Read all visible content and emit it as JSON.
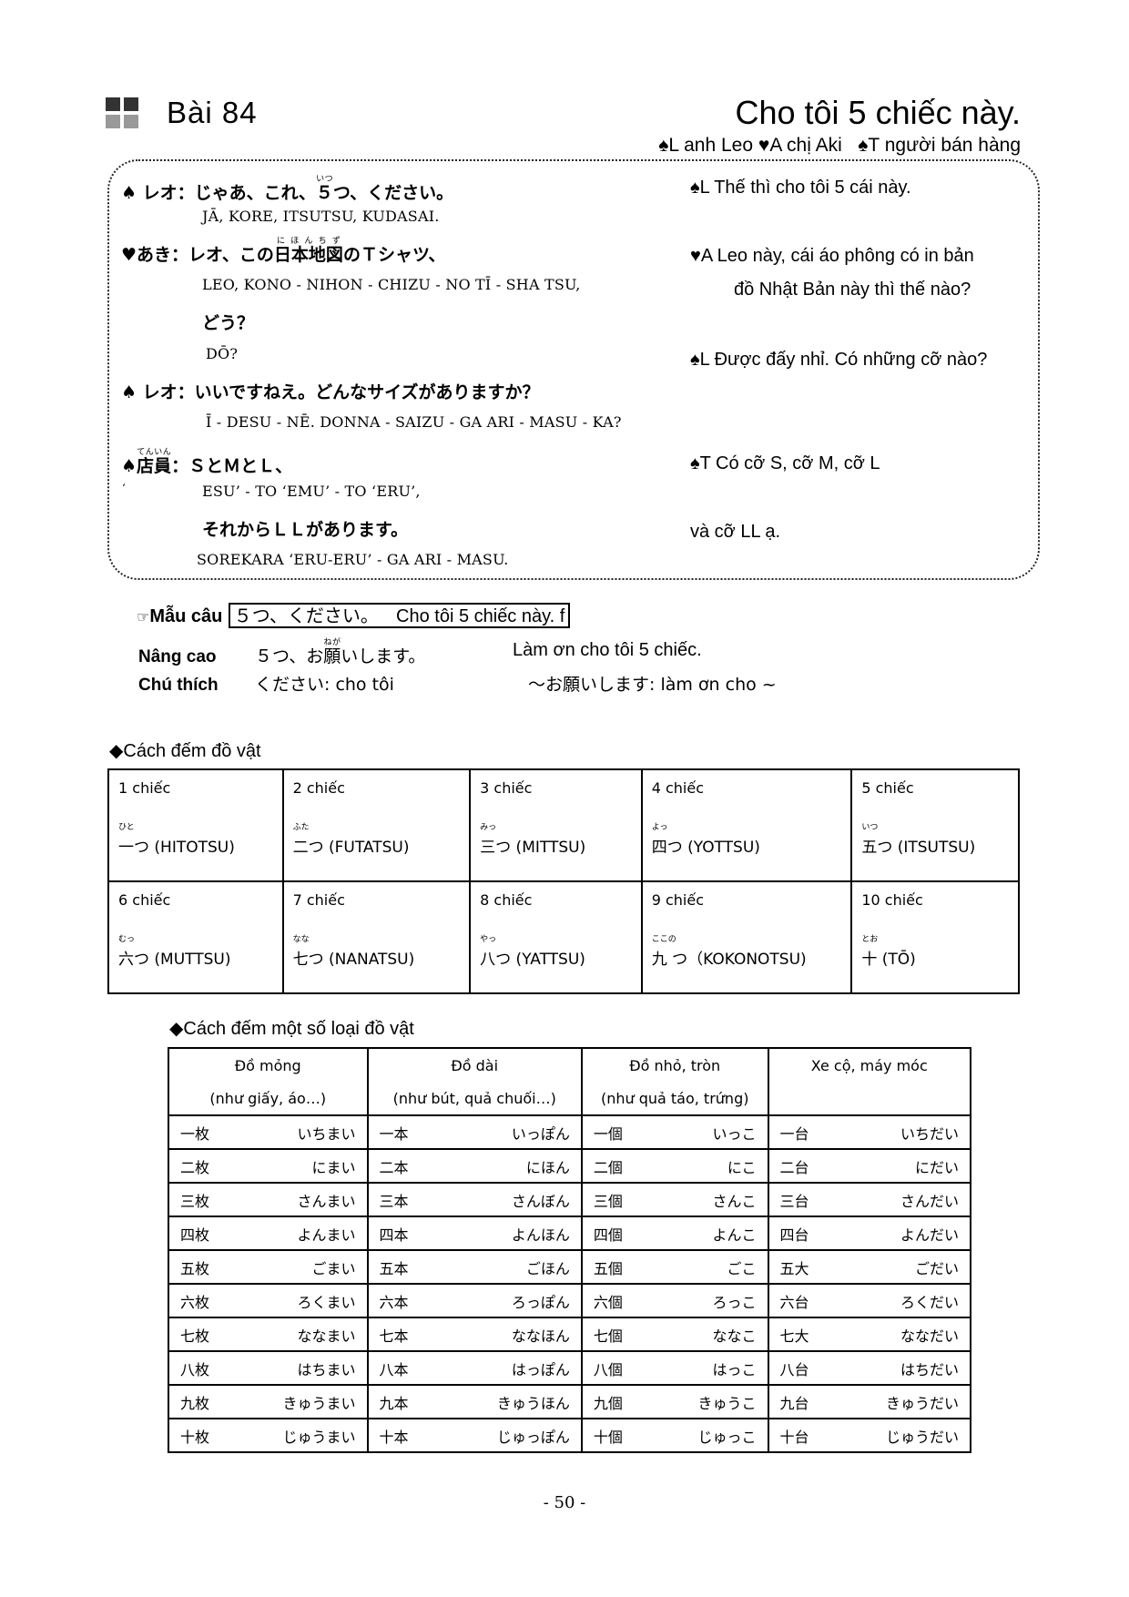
{
  "header": {
    "lesson": "Bài 84",
    "title": "Cho tôi 5 chiếc này.",
    "legend": [
      {
        "mark": "♠L",
        "text": "anh Leo"
      },
      {
        "mark": "♥A",
        "text": "chị Aki"
      },
      {
        "mark": "♠T",
        "text": "người bán hàng"
      }
    ]
  },
  "dialogue": {
    "l1": {
      "speaker": "♠ レオ：",
      "pre": "じゃあ、これ、",
      "ruby_base": "５",
      "ruby": "いつ",
      "post": "つ、ください。",
      "romaji": "JĀ,   KORE,   ITSUTSU,   KUDASAI.",
      "translation": "♠L Thế thì cho tôi 5 cái này."
    },
    "l2": {
      "speaker": "♥あき：",
      "pre": "レオ、この",
      "ruby_base": "日本地図",
      "ruby": "にほんちず",
      "post": "のＴシャツ、",
      "romaji": "LEO,   KONO - NIHON - CHIZU - NO    TĪ - SHA TSU,",
      "jp2": "どう？",
      "romaji2": "DŌ?",
      "translation1": "♥A  Leo này, cái áo phông có in bản",
      "translation2": "đồ Nhật Bản này thì thế nào?"
    },
    "l3": {
      "speaker": "♠ レオ：",
      "text": "いいですねえ。どんなサイズがありますか？",
      "romaji": "Ī - DESU - NĒ. DONNA - SAIZU - GA    ARI - MASU - KA?",
      "translation": "♠L Được đấy nhỉ. Có những cỡ nào?"
    },
    "l4": {
      "mark": "♠",
      "speaker_base": "店員",
      "speaker_ruby": "てんいん",
      "colon": "：",
      "text": "ＳとＭとＬ、",
      "stray": "‘",
      "romaji": "ESU’ - TO    ‘EMU’ - TO    ‘ERU’,",
      "jp2": "それからＬＬがあります。",
      "romaji2": "SOREKARA    ‘ERU-ERU’ - GA    ARI - MASU.",
      "translation1": "♠T Có cỡ S, cỡ M, cỡ L",
      "translation2": "và cỡ LL ạ."
    }
  },
  "pattern": {
    "icon": "☞",
    "label": "Mẫu câu",
    "jp": "５つ、ください。",
    "vi": "Cho tôi 5 chiếc này. f"
  },
  "advanced": {
    "label": "Nâng cao",
    "pre": "５つ、お",
    "ruby_base": "願",
    "ruby": "ねが",
    "post": "いします。",
    "vi": "Làm ơn cho tôi 5 chiếc."
  },
  "notes": {
    "label": "Chú thích",
    "n1": "ください: cho tôi",
    "n2": "～お願いします: làm ơn cho ~"
  },
  "counting": {
    "heading": "◆Cách đếm đồ vật",
    "rows": [
      [
        {
          "label": "1 chiếc",
          "reading": "ひと",
          "word": "一つ (HITOTSU)"
        },
        {
          "label": "2 chiếc",
          "reading": "ふた",
          "word": "二つ (FUTATSU)"
        },
        {
          "label": "3 chiếc",
          "reading": "みっ",
          "word": "三つ (MITTSU)"
        },
        {
          "label": "4 chiếc",
          "reading": "よっ",
          "word": "四つ (YOTTSU)"
        },
        {
          "label": "5 chiếc",
          "reading": "いつ",
          "word": "五つ (ITSUTSU)"
        }
      ],
      [
        {
          "label": "6 chiếc",
          "reading": "むっ",
          "word": "六つ (MUTTSU)"
        },
        {
          "label": "7 chiếc",
          "reading": "なな",
          "word": "七つ (NANATSU)"
        },
        {
          "label": "8 chiếc",
          "reading": "やっ",
          "word": "八つ (YATTSU)"
        },
        {
          "label": "9 chiếc",
          "reading": "ここの",
          "word": " 九 つ（KOKONOTSU)"
        },
        {
          "label": "10 chiếc",
          "reading": "とお",
          "word": "十 (TŌ)"
        }
      ]
    ]
  },
  "counters": {
    "heading": "◆Cách đếm một số loại đồ vật",
    "headers": [
      {
        "title": "Đồ mỏng",
        "sub": "(như giấy, áo…)"
      },
      {
        "title": "Đồ dài",
        "sub": "(như bút, quả chuối…)"
      },
      {
        "title": "Đồ nhỏ, tròn",
        "sub": "(như quả táo, trứng)"
      },
      {
        "title": "Xe cộ, máy móc",
        "sub": ""
      }
    ],
    "rows": [
      [
        [
          "一枚",
          "いちまい"
        ],
        [
          "一本",
          "いっぽん"
        ],
        [
          "一個",
          "いっこ"
        ],
        [
          "一台",
          "いちだい"
        ]
      ],
      [
        [
          "二枚",
          "にまい"
        ],
        [
          "二本",
          "にほん"
        ],
        [
          "二個",
          "にこ"
        ],
        [
          "二台",
          "にだい"
        ]
      ],
      [
        [
          "三枚",
          "さんまい"
        ],
        [
          "三本",
          "さんぼん"
        ],
        [
          "三個",
          "さんこ"
        ],
        [
          "三台",
          "さんだい"
        ]
      ],
      [
        [
          "四枚",
          "よんまい"
        ],
        [
          "四本",
          "よんほん"
        ],
        [
          "四個",
          "よんこ"
        ],
        [
          "四台",
          "よんだい"
        ]
      ],
      [
        [
          "五枚",
          "ごまい"
        ],
        [
          "五本",
          "ごほん"
        ],
        [
          "五個",
          "ごこ"
        ],
        [
          "五大",
          "ごだい"
        ]
      ],
      [
        [
          "六枚",
          "ろくまい"
        ],
        [
          "六本",
          "ろっぽん"
        ],
        [
          "六個",
          "ろっこ"
        ],
        [
          "六台",
          "ろくだい"
        ]
      ],
      [
        [
          "七枚",
          "ななまい"
        ],
        [
          "七本",
          "ななほん"
        ],
        [
          "七個",
          "ななこ"
        ],
        [
          "七大",
          "ななだい"
        ]
      ],
      [
        [
          "八枚",
          "はちまい"
        ],
        [
          "八本",
          "はっぽん"
        ],
        [
          "八個",
          "はっこ"
        ],
        [
          "八台",
          "はちだい"
        ]
      ],
      [
        [
          "九枚",
          "きゅうまい"
        ],
        [
          "九本",
          "きゅうほん"
        ],
        [
          "九個",
          "きゅうこ"
        ],
        [
          "九台",
          "きゅうだい"
        ]
      ],
      [
        [
          "十枚",
          "じゅうまい"
        ],
        [
          "十本",
          "じゅっぽん"
        ],
        [
          "十個",
          "じゅっこ"
        ],
        [
          "十台",
          "じゅうだい"
        ]
      ]
    ]
  },
  "page_number": "- 50 -"
}
